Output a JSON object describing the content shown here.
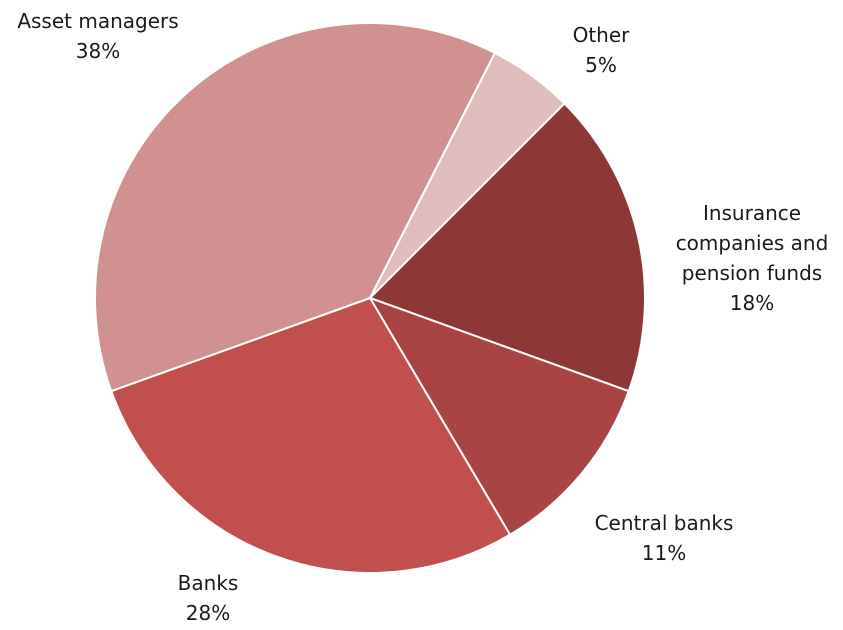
{
  "chart_data": {
    "type": "pie",
    "title": "",
    "start_angle_deg": -63,
    "direction": "clockwise",
    "slices": [
      {
        "name": "Other",
        "value": 5,
        "value_label": "5%",
        "color": "#DFBDBD",
        "label_lines": [
          "Other"
        ]
      },
      {
        "name": "Insurance companies and pension funds",
        "value": 18,
        "value_label": "18%",
        "color": "#8D3736",
        "label_lines": [
          "Insurance",
          "companies and",
          "pension funds"
        ]
      },
      {
        "name": "Central banks",
        "value": 11,
        "value_label": "11%",
        "color": "#A84544",
        "label_lines": [
          "Central banks"
        ]
      },
      {
        "name": "Banks",
        "value": 28,
        "value_label": "28%",
        "color": "#C04F4D",
        "label_lines": [
          "Banks"
        ]
      },
      {
        "name": "Asset managers",
        "value": 38,
        "value_label": "38%",
        "color": "#D09190",
        "label_lines": [
          "Asset managers"
        ]
      }
    ]
  }
}
